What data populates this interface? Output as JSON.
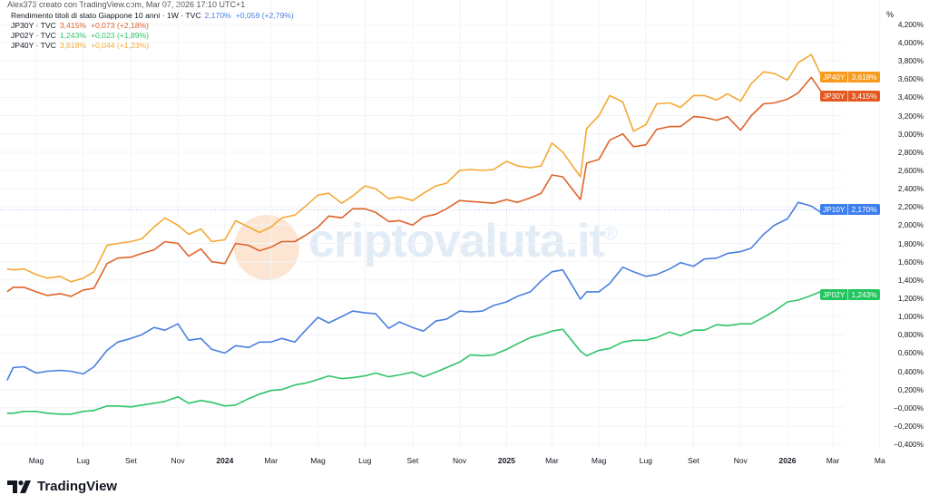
{
  "header": {
    "attribution": "Alex373 creato con TradingView.com, Mar 07, 2026 17:10 UTC+1"
  },
  "legend": [
    {
      "name": "Rendimento titoli di stato Giappone 10 anni · 1W · TVC",
      "value": "2,170%",
      "change": "+0,059 (+2,79%)",
      "color": "#4a7fe0"
    },
    {
      "name": "JP30Y · TVC",
      "value": "3,415%",
      "change": "+0,073 (+2,18%)",
      "color": "#e0632a"
    },
    {
      "name": "JP02Y · TVC",
      "value": "1,243%",
      "change": "+0,023 (+1,89%)",
      "color": "#2ec46a"
    },
    {
      "name": "JP40Y · TVC",
      "value": "3,618%",
      "change": "+0,044 (+1,23%)",
      "color": "#f5a833"
    }
  ],
  "badges": [
    {
      "symbol": "JP40Y",
      "value": "3,618%",
      "level": 3.618,
      "color": "#f89b1c"
    },
    {
      "symbol": "JP30Y",
      "value": "3,415%",
      "level": 3.415,
      "color": "#e4581f"
    },
    {
      "symbol": "JP10Y",
      "value": "2,170%",
      "level": 2.17,
      "color": "#3d7ff0"
    },
    {
      "symbol": "JP02Y",
      "value": "1,243%",
      "level": 1.243,
      "color": "#22c55e"
    }
  ],
  "watermark": {
    "text": "criptovaluta.it",
    "mark": "®"
  },
  "branding": {
    "name": "TradingView"
  },
  "chart_data": {
    "type": "line",
    "yunit": "%",
    "ylim": [
      -0.4,
      4.2
    ],
    "yticks": [
      {
        "v": 4.2,
        "label": "4,200%"
      },
      {
        "v": 4.0,
        "label": "4,000%"
      },
      {
        "v": 3.8,
        "label": "3,800%"
      },
      {
        "v": 3.6,
        "label": "3,600%"
      },
      {
        "v": 3.4,
        "label": "3,400%"
      },
      {
        "v": 3.2,
        "label": "3,200%"
      },
      {
        "v": 3.0,
        "label": "3,000%"
      },
      {
        "v": 2.8,
        "label": "2,800%"
      },
      {
        "v": 2.6,
        "label": "2,600%"
      },
      {
        "v": 2.4,
        "label": "2,400%"
      },
      {
        "v": 2.2,
        "label": "2,200%"
      },
      {
        "v": 2.0,
        "label": "2,000%"
      },
      {
        "v": 1.8,
        "label": "1,800%"
      },
      {
        "v": 1.6,
        "label": "1,600%"
      },
      {
        "v": 1.4,
        "label": "1,400%"
      },
      {
        "v": 1.2,
        "label": "1,200%"
      },
      {
        "v": 1.0,
        "label": "1,000%"
      },
      {
        "v": 0.8,
        "label": "0,800%"
      },
      {
        "v": 0.6,
        "label": "0,600%"
      },
      {
        "v": 0.4,
        "label": "0,400%"
      },
      {
        "v": 0.2,
        "label": "0,200%"
      },
      {
        "v": 0.0,
        "label": "−0,000%"
      },
      {
        "v": -0.2,
        "label": "−0,200%"
      },
      {
        "v": -0.4,
        "label": "−0,400%"
      }
    ],
    "xticks": [
      {
        "date": "2023-05-01",
        "label": "Mag"
      },
      {
        "date": "2023-07-01",
        "label": "Lug"
      },
      {
        "date": "2023-09-01",
        "label": "Set"
      },
      {
        "date": "2023-11-01",
        "label": "Nov"
      },
      {
        "date": "2024-01-01",
        "label": "2024",
        "bold": true
      },
      {
        "date": "2024-03-01",
        "label": "Mar"
      },
      {
        "date": "2024-05-01",
        "label": "Mag"
      },
      {
        "date": "2024-07-01",
        "label": "Lug"
      },
      {
        "date": "2024-09-01",
        "label": "Set"
      },
      {
        "date": "2024-11-01",
        "label": "Nov"
      },
      {
        "date": "2025-01-01",
        "label": "2025",
        "bold": true
      },
      {
        "date": "2025-03-01",
        "label": "Mar"
      },
      {
        "date": "2025-05-01",
        "label": "Mag"
      },
      {
        "date": "2025-07-01",
        "label": "Lug"
      },
      {
        "date": "2025-09-01",
        "label": "Set"
      },
      {
        "date": "2025-11-01",
        "label": "Nov"
      },
      {
        "date": "2026-01-01",
        "label": "2026",
        "bold": true
      },
      {
        "date": "2026-03-01",
        "label": "Mar"
      },
      {
        "date": "2026-05-01",
        "label": "Ma"
      }
    ],
    "dates": [
      "2023-03-24",
      "2023-04-01",
      "2023-04-15",
      "2023-05-01",
      "2023-05-15",
      "2023-06-01",
      "2023-06-15",
      "2023-07-01",
      "2023-07-15",
      "2023-08-01",
      "2023-08-15",
      "2023-09-01",
      "2023-09-15",
      "2023-10-01",
      "2023-10-15",
      "2023-11-01",
      "2023-11-15",
      "2023-12-01",
      "2023-12-15",
      "2024-01-01",
      "2024-01-15",
      "2024-02-01",
      "2024-02-15",
      "2024-03-01",
      "2024-03-15",
      "2024-04-01",
      "2024-04-15",
      "2024-05-01",
      "2024-05-15",
      "2024-06-01",
      "2024-06-15",
      "2024-07-01",
      "2024-07-15",
      "2024-08-01",
      "2024-08-15",
      "2024-09-01",
      "2024-09-15",
      "2024-10-01",
      "2024-10-15",
      "2024-11-01",
      "2024-11-15",
      "2024-12-01",
      "2024-12-15",
      "2025-01-01",
      "2025-01-15",
      "2025-02-01",
      "2025-02-15",
      "2025-03-01",
      "2025-03-15",
      "2025-04-07",
      "2025-04-15",
      "2025-05-01",
      "2025-05-15",
      "2025-06-01",
      "2025-06-15",
      "2025-07-01",
      "2025-07-15",
      "2025-08-01",
      "2025-08-15",
      "2025-09-01",
      "2025-09-15",
      "2025-10-01",
      "2025-10-15",
      "2025-11-01",
      "2025-11-15",
      "2025-12-01",
      "2025-12-15",
      "2026-01-01",
      "2026-01-15",
      "2026-02-01",
      "2026-02-15",
      "2026-03-06"
    ],
    "series": [
      {
        "name": "JP40Y",
        "color": "#f5a833",
        "values": [
          1.52,
          1.51,
          1.52,
          1.46,
          1.42,
          1.44,
          1.38,
          1.42,
          1.49,
          1.78,
          1.8,
          1.82,
          1.85,
          1.98,
          2.08,
          2.0,
          1.9,
          1.96,
          1.82,
          1.84,
          2.05,
          1.98,
          1.92,
          1.98,
          2.08,
          2.11,
          2.21,
          2.33,
          2.35,
          2.24,
          2.32,
          2.43,
          2.4,
          2.29,
          2.31,
          2.27,
          2.35,
          2.43,
          2.46,
          2.6,
          2.61,
          2.6,
          2.61,
          2.7,
          2.65,
          2.63,
          2.65,
          2.9,
          2.8,
          2.53,
          3.06,
          3.2,
          3.42,
          3.35,
          3.03,
          3.1,
          3.33,
          3.34,
          3.29,
          3.42,
          3.42,
          3.37,
          3.44,
          3.36,
          3.55,
          3.68,
          3.66,
          3.59,
          3.78,
          3.87,
          3.62,
          3.618
        ]
      },
      {
        "name": "JP30Y",
        "color": "#e0632a",
        "values": [
          1.27,
          1.32,
          1.32,
          1.27,
          1.23,
          1.25,
          1.22,
          1.29,
          1.31,
          1.58,
          1.64,
          1.65,
          1.69,
          1.73,
          1.82,
          1.8,
          1.66,
          1.74,
          1.6,
          1.58,
          1.8,
          1.78,
          1.72,
          1.76,
          1.82,
          1.82,
          1.89,
          1.98,
          2.1,
          2.08,
          2.18,
          2.18,
          2.14,
          2.04,
          2.05,
          2.0,
          2.09,
          2.12,
          2.18,
          2.27,
          2.26,
          2.25,
          2.24,
          2.28,
          2.25,
          2.3,
          2.35,
          2.55,
          2.53,
          2.28,
          2.68,
          2.72,
          2.93,
          3.0,
          2.86,
          2.88,
          3.05,
          3.08,
          3.08,
          3.19,
          3.18,
          3.15,
          3.19,
          3.04,
          3.2,
          3.33,
          3.34,
          3.38,
          3.45,
          3.62,
          3.45,
          3.415
        ]
      },
      {
        "name": "JP10Y",
        "color": "#4a7fe0",
        "values": [
          0.3,
          0.44,
          0.45,
          0.38,
          0.4,
          0.41,
          0.4,
          0.37,
          0.45,
          0.63,
          0.72,
          0.76,
          0.8,
          0.88,
          0.85,
          0.92,
          0.74,
          0.76,
          0.64,
          0.6,
          0.68,
          0.66,
          0.72,
          0.72,
          0.76,
          0.72,
          0.85,
          0.99,
          0.93,
          1.0,
          1.06,
          1.04,
          1.03,
          0.87,
          0.94,
          0.88,
          0.84,
          0.95,
          0.97,
          1.06,
          1.05,
          1.06,
          1.12,
          1.16,
          1.22,
          1.27,
          1.39,
          1.49,
          1.51,
          1.19,
          1.27,
          1.27,
          1.36,
          1.54,
          1.49,
          1.44,
          1.46,
          1.52,
          1.59,
          1.55,
          1.63,
          1.64,
          1.69,
          1.71,
          1.75,
          1.9,
          2.0,
          2.07,
          2.25,
          2.21,
          2.13,
          2.17
        ]
      },
      {
        "name": "JP02Y",
        "color": "#2ec46a",
        "values": [
          -0.06,
          -0.06,
          -0.04,
          -0.04,
          -0.06,
          -0.07,
          -0.07,
          -0.04,
          -0.03,
          0.02,
          0.02,
          0.01,
          0.03,
          0.05,
          0.07,
          0.12,
          0.05,
          0.08,
          0.06,
          0.02,
          0.03,
          0.1,
          0.15,
          0.19,
          0.2,
          0.25,
          0.27,
          0.31,
          0.35,
          0.32,
          0.33,
          0.35,
          0.38,
          0.34,
          0.36,
          0.39,
          0.34,
          0.39,
          0.44,
          0.5,
          0.58,
          0.57,
          0.58,
          0.64,
          0.7,
          0.77,
          0.8,
          0.84,
          0.86,
          0.62,
          0.57,
          0.63,
          0.65,
          0.72,
          0.74,
          0.74,
          0.77,
          0.83,
          0.79,
          0.85,
          0.85,
          0.91,
          0.9,
          0.92,
          0.92,
          0.99,
          1.06,
          1.16,
          1.18,
          1.23,
          1.28,
          1.243
        ]
      }
    ],
    "last_price_line": {
      "series": "JP10Y",
      "value": 2.17,
      "color": "#3d7ff0"
    },
    "grid": true
  }
}
